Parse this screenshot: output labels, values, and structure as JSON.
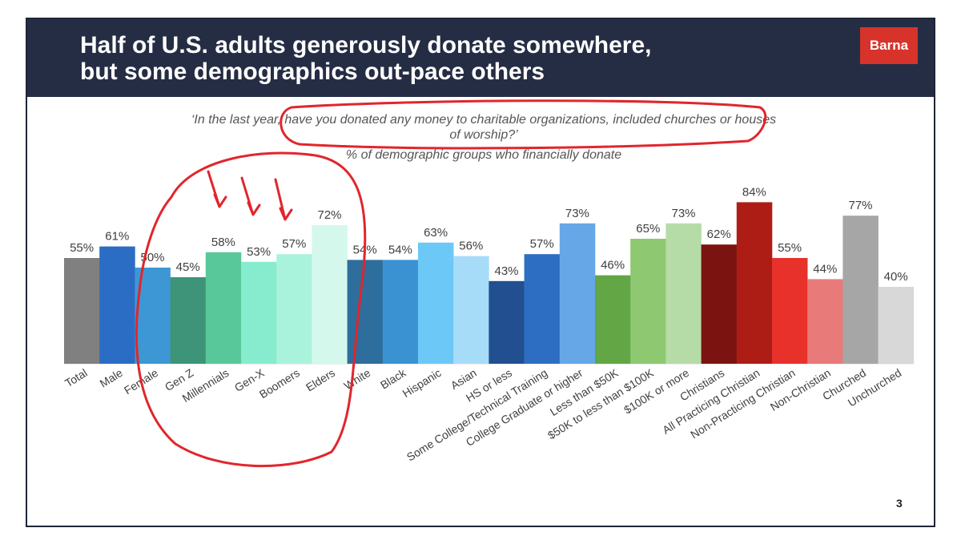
{
  "slide": {
    "title_line1": "Half of U.S. adults generously donate somewhere,",
    "title_line2": "but some demographics out-pace others",
    "logo": "Barna",
    "question_line1": "‘In the last year, have you donated any money to charitable organizations, included churches or houses",
    "question_line2": "of worship?’",
    "subtitle": "% of demographic groups who financially donate",
    "page_number": "3"
  },
  "colors": {
    "header_bg": "#252d44",
    "logo_bg": "#d8332b",
    "annotation_red": "#e0262c"
  },
  "chart_data": {
    "type": "bar",
    "categories": [
      "Total",
      "Male",
      "Female",
      "Gen Z",
      "Millennials",
      "Gen-X",
      "Boomers",
      "Elders",
      "White",
      "Black",
      "Hispanic",
      "Asian",
      "HS or less",
      "Some College/Technical Training",
      "College Graduate or higher",
      "Less than $50K",
      "$50K to less than $100K",
      "$100K or more",
      "Christians",
      "All Practicing Christian",
      "Non-Practicing Christian",
      "Non-Christian",
      "Churched",
      "Unchurched"
    ],
    "values": [
      55,
      61,
      50,
      45,
      58,
      53,
      57,
      72,
      54,
      54,
      63,
      56,
      43,
      57,
      73,
      46,
      65,
      73,
      62,
      84,
      55,
      44,
      77,
      40
    ],
    "labels": [
      "55%",
      "61%",
      "50%",
      "45%",
      "58%",
      "53%",
      "57%",
      "72%",
      "54%",
      "54%",
      "63%",
      "56%",
      "43%",
      "57%",
      "73%",
      "46%",
      "65%",
      "73%",
      "62%",
      "84%",
      "55%",
      "44%",
      "77%",
      "40%"
    ],
    "colors": [
      "#808080",
      "#2b6cc4",
      "#3d97d4",
      "#3d9478",
      "#58c89a",
      "#87ebcd",
      "#a9f3dd",
      "#d4f8ec",
      "#2e6e9c",
      "#3a92d3",
      "#6bc8f7",
      "#a7dcf9",
      "#224f8f",
      "#2d6ec3",
      "#66a7e8",
      "#62a645",
      "#8ec871",
      "#b5dca6",
      "#7b1410",
      "#ad1d16",
      "#e8312b",
      "#e87b79",
      "#a6a6a6",
      "#d8d8d8"
    ],
    "ylim": [
      0,
      100
    ],
    "title": "",
    "xlabel": "",
    "ylabel": "",
    "grid": false,
    "legend": "none"
  }
}
